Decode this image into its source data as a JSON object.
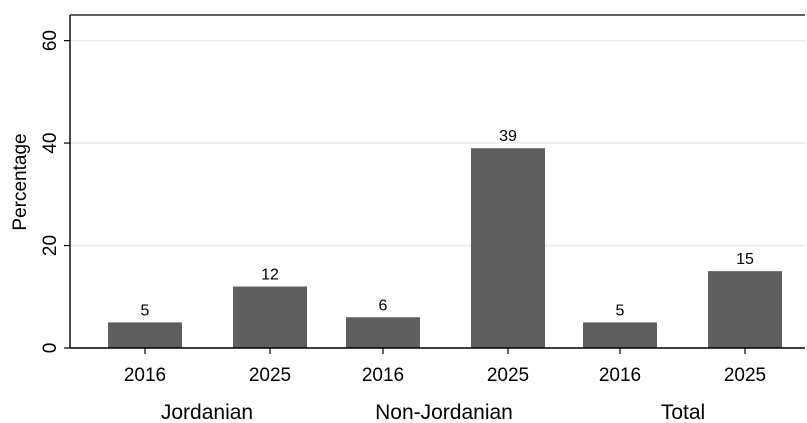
{
  "chart_data": {
    "type": "bar",
    "title": "",
    "xlabel": "",
    "ylabel": "Percentage",
    "ylim": [
      0,
      65
    ],
    "yticks": [
      0,
      20,
      40,
      60
    ],
    "grid": true,
    "legend": "none",
    "groups": [
      "Jordanian",
      "Non-Jordanian",
      "Total"
    ],
    "categories": [
      "2016",
      "2025",
      "2016",
      "2025",
      "2016",
      "2025"
    ],
    "values": [
      5,
      12,
      6,
      39,
      5,
      15
    ],
    "data_labels": [
      "5",
      "12",
      "6",
      "39",
      "5",
      "15"
    ],
    "bar_color": "#5f5f5f",
    "grid_color": "#e8e8e8"
  }
}
